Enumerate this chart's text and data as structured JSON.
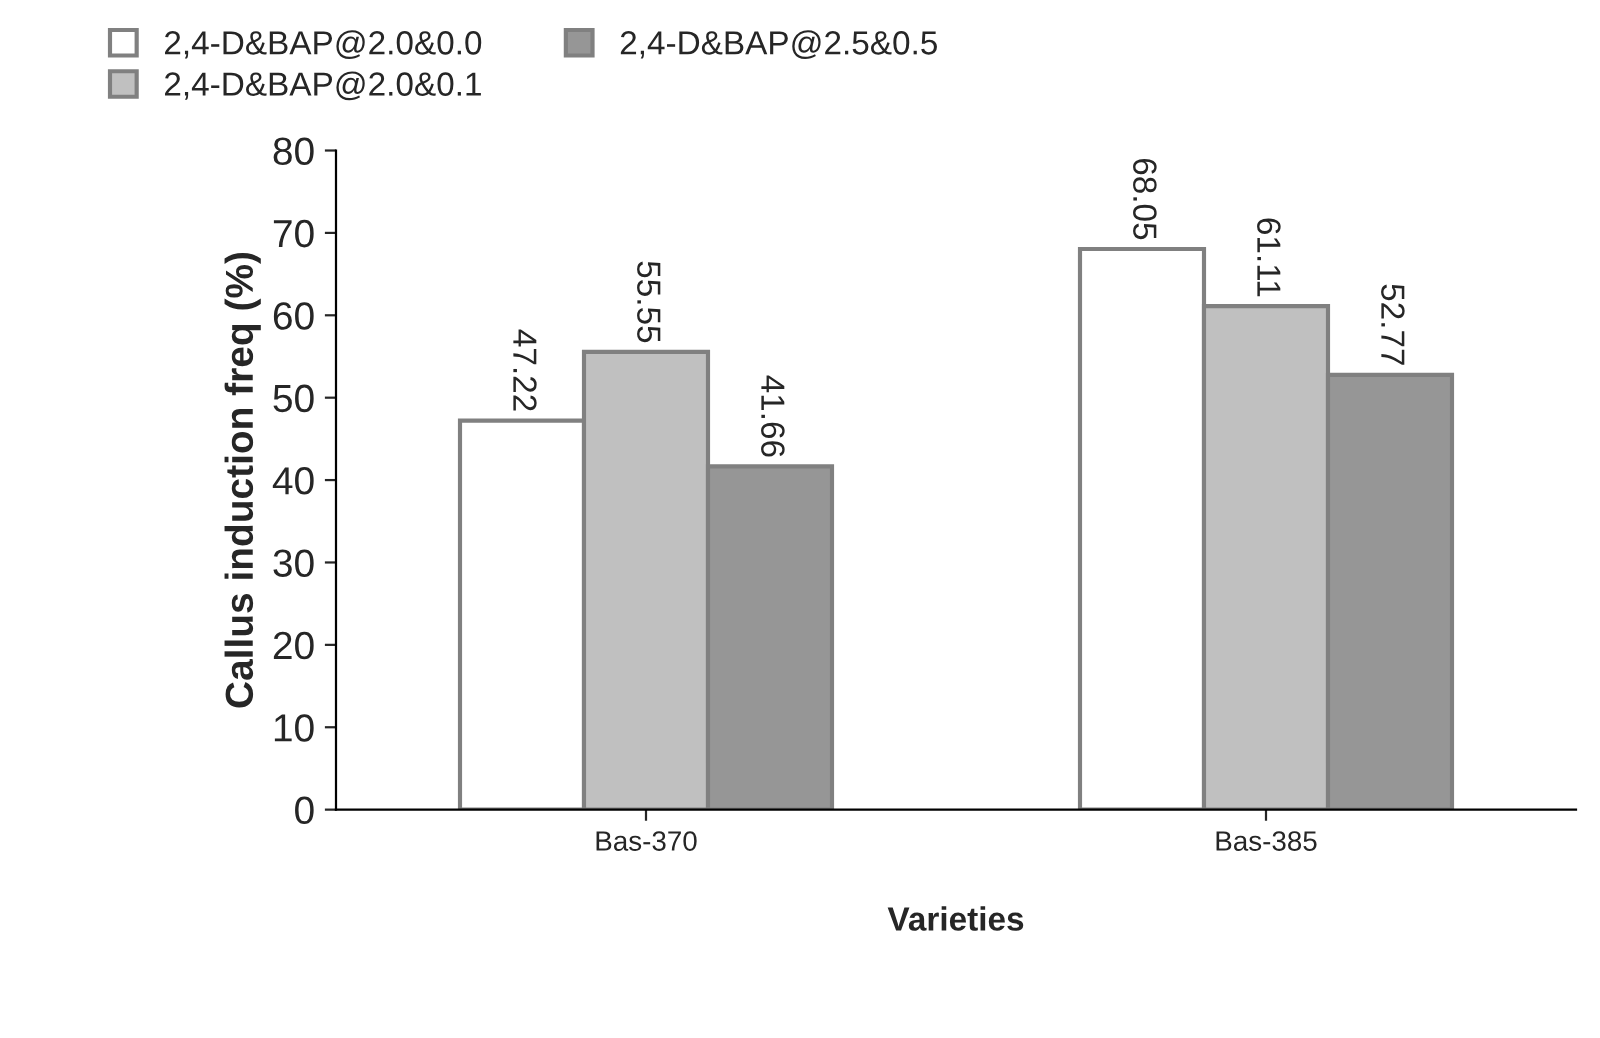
{
  "chart_data": {
    "type": "bar",
    "xlabel": "Varieties",
    "ylabel": "Callus induction freq (%)",
    "categories": [
      "Bas-370",
      "Bas-385"
    ],
    "series": [
      {
        "name": "2,4-D&BAP@2.0&0.0",
        "color": "#ffffff",
        "values": [
          47.22,
          68.05
        ]
      },
      {
        "name": "2,4-D&BAP@2.0&0.1",
        "color": "#c0c0c0",
        "values": [
          55.55,
          61.11
        ]
      },
      {
        "name": "2,4-D&BAP@2.5&0.5",
        "color": "#969696",
        "values": [
          41.66,
          52.77
        ]
      }
    ],
    "ylim": [
      0,
      80
    ],
    "yticks": [
      0,
      10,
      20,
      30,
      40,
      50,
      60,
      70,
      80
    ],
    "data_labels": true,
    "grid": false,
    "legend": "top"
  }
}
